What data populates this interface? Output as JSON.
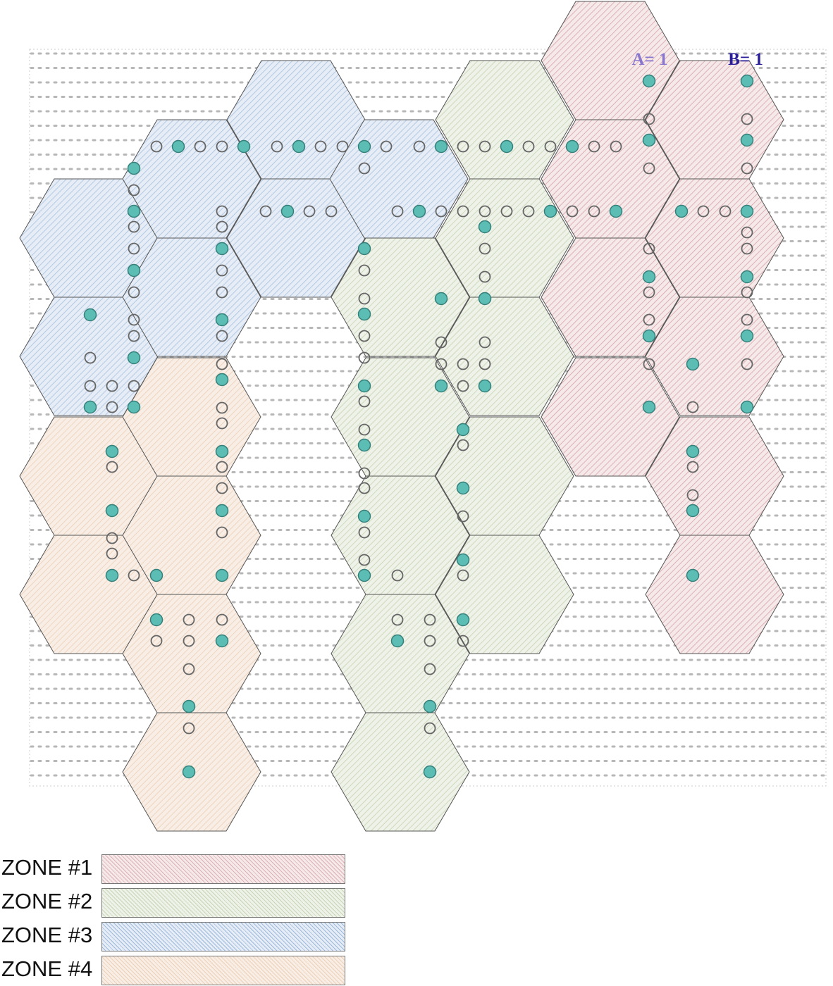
{
  "labels": {
    "a": "A= 1",
    "b": "B= 1"
  },
  "colors": {
    "zone1": "#d6a3a8",
    "zone2": "#bccca6",
    "zone3": "#8fb0d6",
    "zone4": "#e6c2a3",
    "filled": "#5cbdb5",
    "ring": "#666666",
    "grid": "#b7b7b7",
    "label_a": "#8877cc",
    "label_b": "#2a1f99"
  },
  "legend": [
    {
      "label": "ZONE #1",
      "zone": "zone1"
    },
    {
      "label": "ZONE #2",
      "zone": "zone2"
    },
    {
      "label": "ZONE #3",
      "zone": "zone3"
    },
    {
      "label": "ZONE #4",
      "zone": "zone4"
    }
  ]
}
